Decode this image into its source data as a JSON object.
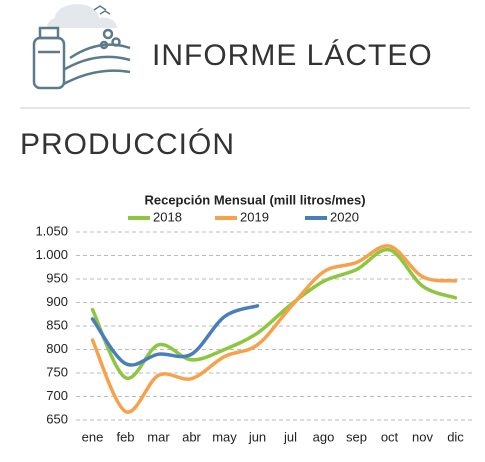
{
  "header": {
    "title": "INFORME LÁCTEO"
  },
  "section_title": "PRODUCCIÓN",
  "chart_data": {
    "type": "line",
    "title": "Recepción Mensual (mill litros/mes)",
    "categories": [
      "ene",
      "feb",
      "mar",
      "abr",
      "may",
      "jun",
      "jul",
      "ago",
      "sep",
      "oct",
      "nov",
      "dic"
    ],
    "series": [
      {
        "name": "2018",
        "color": "#8dc63f",
        "values": [
          885,
          740,
          810,
          778,
          800,
          835,
          895,
          945,
          970,
          1012,
          935,
          910
        ]
      },
      {
        "name": "2019",
        "color": "#f7a14b",
        "values": [
          820,
          668,
          745,
          738,
          785,
          810,
          890,
          965,
          985,
          1020,
          955,
          946
        ]
      },
      {
        "name": "2020",
        "color": "#4a7ebb",
        "values": [
          865,
          770,
          790,
          790,
          870,
          893,
          null,
          null,
          null,
          null,
          null,
          null
        ]
      }
    ],
    "ylim": [
      650,
      1050
    ],
    "yticks": [
      650,
      700,
      750,
      800,
      850,
      900,
      950,
      {
        "value": 1000,
        "label": "1.000"
      },
      {
        "value": 1050,
        "label": "1.050"
      }
    ],
    "grid": true,
    "legend": "top",
    "smooth": true
  }
}
